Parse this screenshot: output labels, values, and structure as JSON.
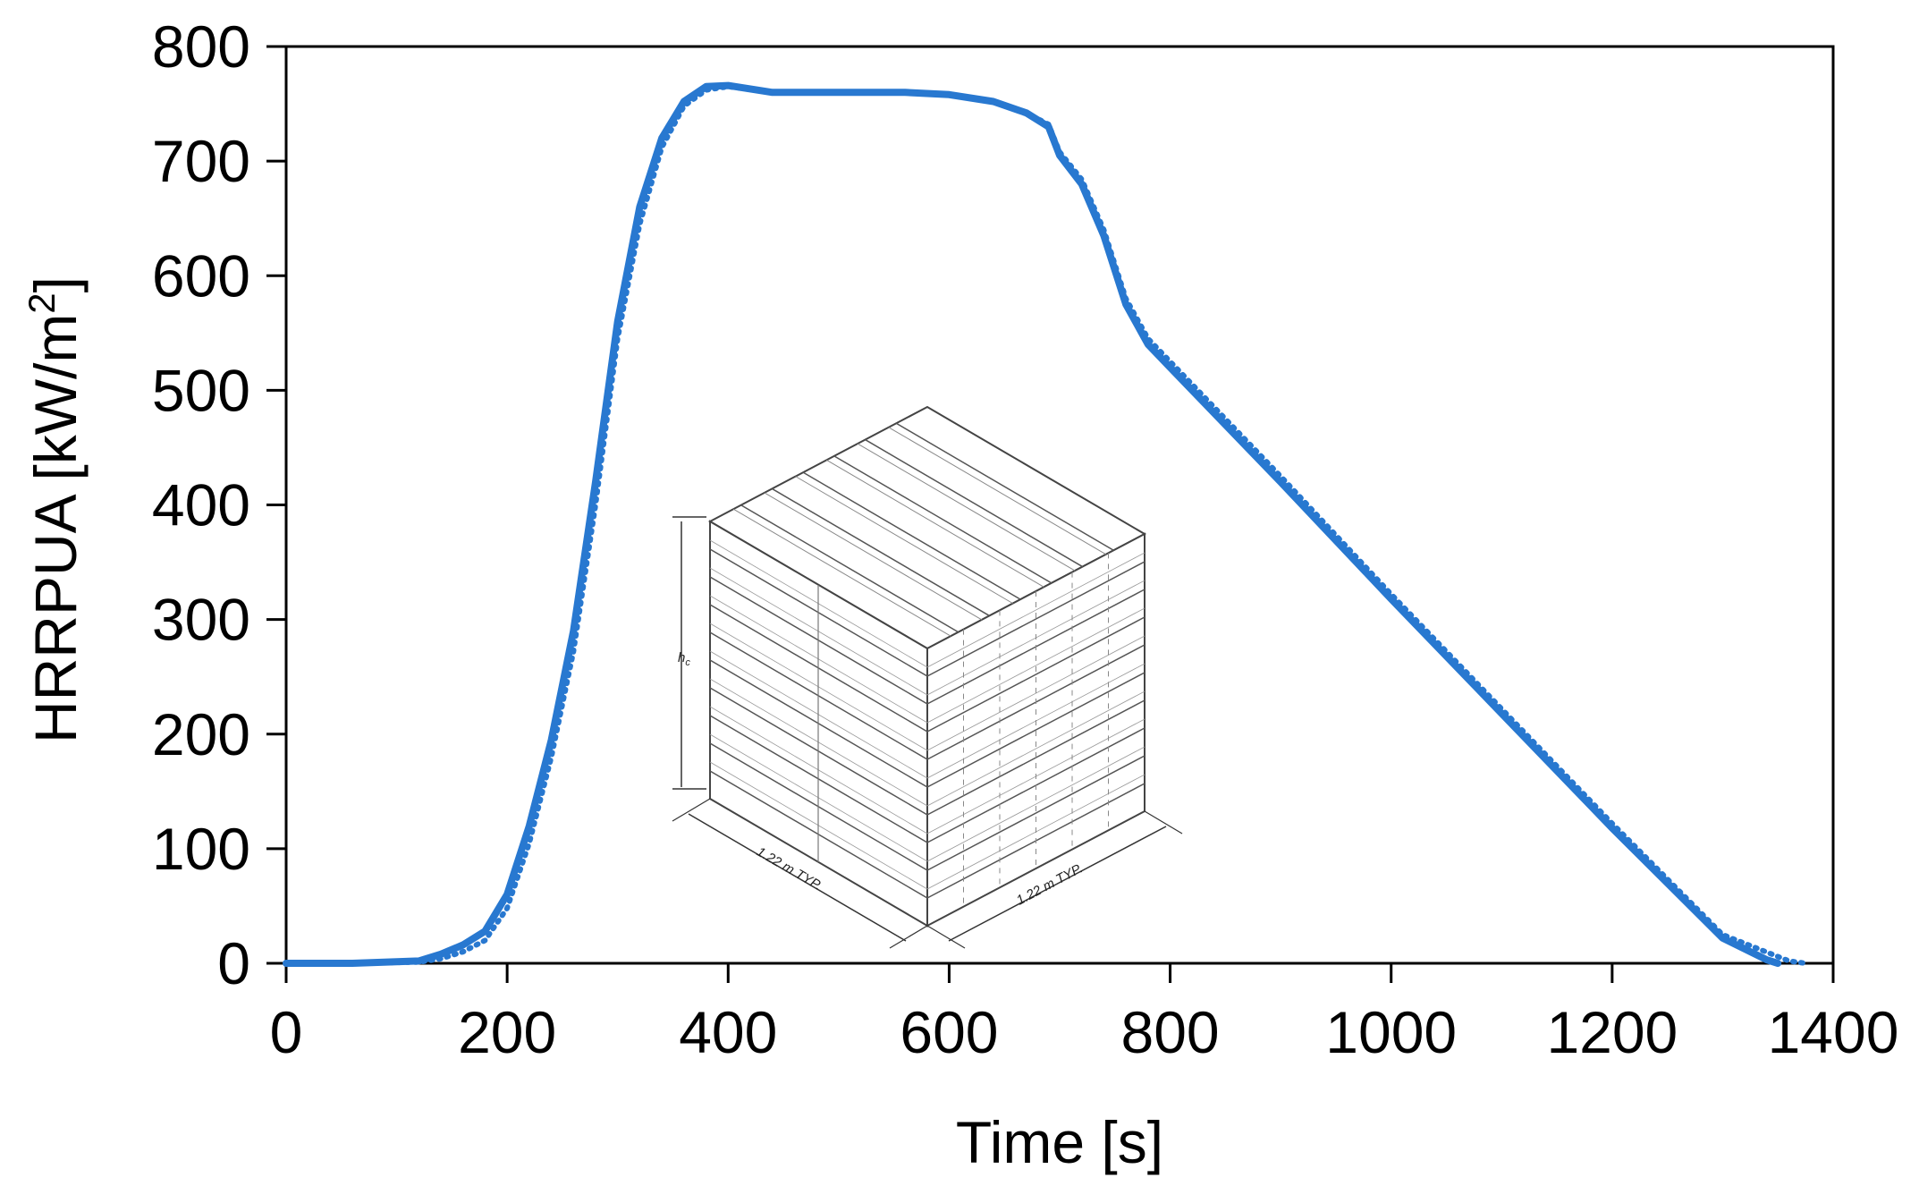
{
  "chart_data": {
    "type": "line",
    "xlabel": "Time [s]",
    "ylabel_main": "HRRPUA [kW/m",
    "ylabel_sup": "2",
    "ylabel_end": "]",
    "xlim": [
      0,
      1400
    ],
    "ylim": [
      0,
      800
    ],
    "xticks": [
      0,
      200,
      400,
      600,
      800,
      1000,
      1200,
      1400
    ],
    "yticks": [
      0,
      100,
      200,
      300,
      400,
      500,
      600,
      700,
      800
    ],
    "grid": false,
    "legend": "none",
    "series_color": "#2878d0",
    "series": [
      {
        "style": "solid",
        "x": [
          0,
          60,
          120,
          140,
          160,
          180,
          200,
          220,
          240,
          260,
          280,
          300,
          320,
          340,
          360,
          380,
          400,
          440,
          500,
          560,
          600,
          640,
          670,
          690,
          700,
          720,
          740,
          760,
          780,
          800,
          900,
          1000,
          1100,
          1200,
          1300,
          1340,
          1350
        ],
        "y": [
          0,
          0,
          2,
          8,
          16,
          28,
          60,
          120,
          195,
          290,
          420,
          560,
          660,
          720,
          752,
          765,
          766,
          760,
          760,
          760,
          758,
          752,
          742,
          730,
          705,
          680,
          635,
          575,
          540,
          520,
          420,
          318,
          218,
          118,
          22,
          3,
          0
        ]
      },
      {
        "style": "dotted",
        "x": [
          0,
          60,
          120,
          140,
          160,
          180,
          200,
          220,
          240,
          260,
          280,
          300,
          320,
          340,
          360,
          380,
          400,
          440,
          500,
          560,
          600,
          640,
          670,
          690,
          700,
          720,
          740,
          760,
          780,
          800,
          900,
          1000,
          1100,
          1200,
          1300,
          1360,
          1375
        ],
        "y": [
          0,
          0,
          1,
          4,
          10,
          20,
          48,
          105,
          180,
          272,
          400,
          545,
          645,
          712,
          748,
          762,
          765,
          760,
          760,
          760,
          758,
          752,
          742,
          732,
          708,
          684,
          640,
          580,
          545,
          525,
          425,
          322,
          222,
          122,
          25,
          2,
          0
        ]
      }
    ]
  },
  "inset": {
    "icon": "stacked-wood-pallets",
    "height_label": "h",
    "height_label_sub": "c",
    "width_label_left": "1.22 m TYP.",
    "width_label_right": "1.22 m TYP."
  }
}
